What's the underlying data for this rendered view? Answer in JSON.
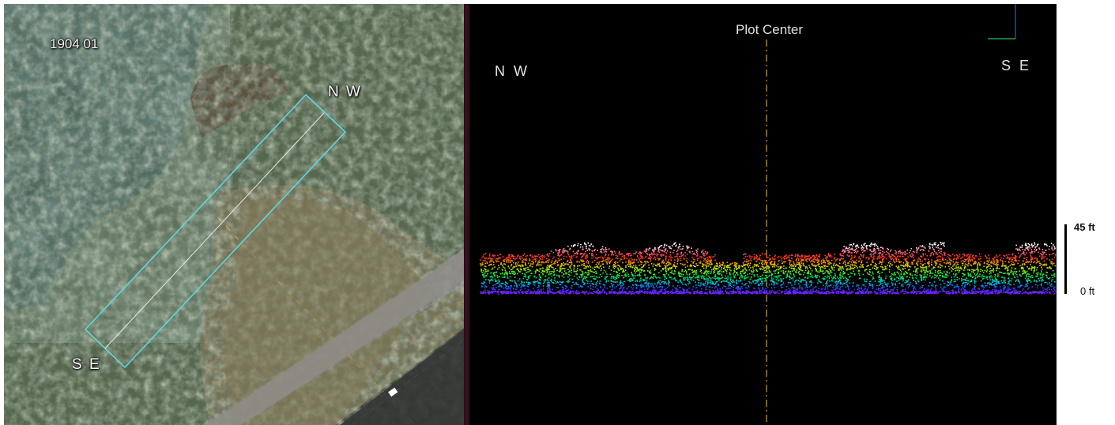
{
  "aerial": {
    "plot_id": "1904 01",
    "label_nw": "N W",
    "label_se": "S E"
  },
  "lidar": {
    "title": "Plot Center",
    "label_nw": "N W",
    "label_se": "S E"
  },
  "scale": {
    "top_label": "45 ft",
    "bottom_label": "0 ft"
  },
  "colors": {
    "plot_outline": "#5fd6e0",
    "centerline": "#c8a040",
    "canopy_top": "#ffffff",
    "canopy_high": "#ff2020",
    "canopy_mid": "#00e040",
    "ground": "#7020ff"
  }
}
